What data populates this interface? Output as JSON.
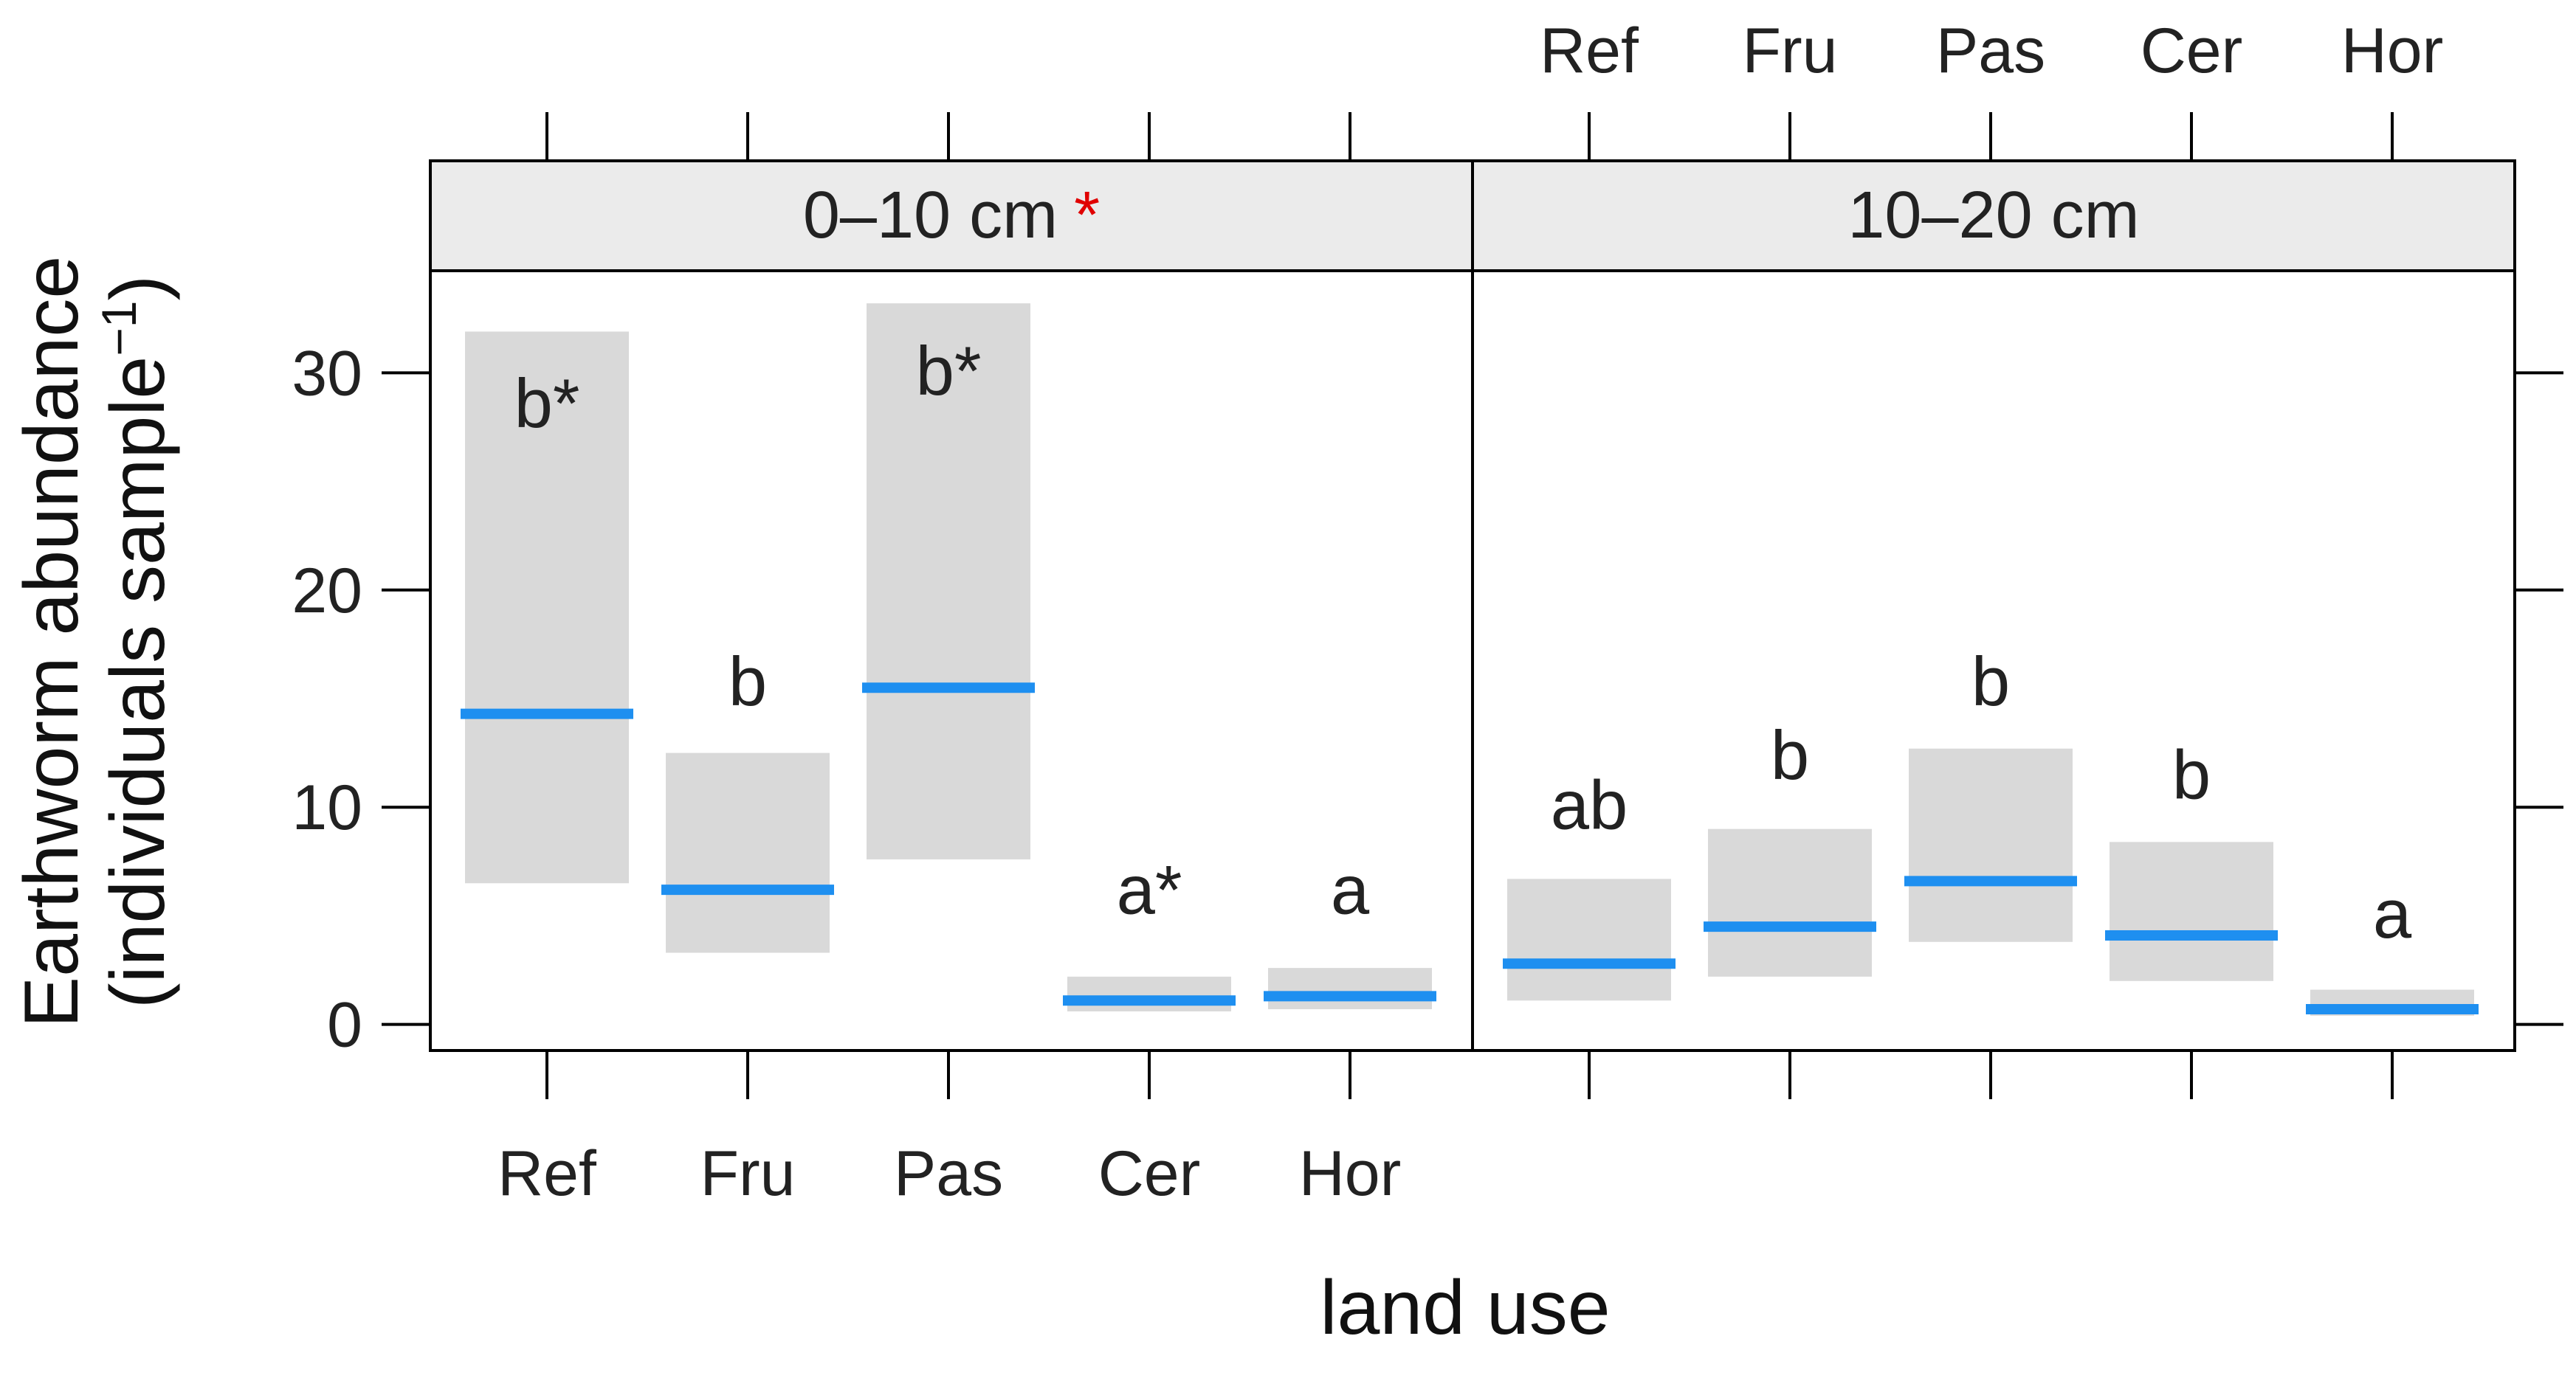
{
  "chart_data": {
    "type": "bar",
    "categories": [
      "Ref",
      "Fru",
      "Pas",
      "Cer",
      "Hor"
    ],
    "xlabel": "land use",
    "ylabel": "Earthworm abundance",
    "ylabel2": "(individuals sample",
    "ylabel_sup": "−1",
    "ylabel_close": ")",
    "yticks": [
      0,
      10,
      20,
      30
    ],
    "ylim": [
      -1.2,
      34.7
    ],
    "panels": [
      {
        "label": "0–10 cm",
        "marker": "*",
        "means": [
          14.3,
          6.2,
          15.5,
          1.1,
          1.3
        ],
        "lower": [
          6.5,
          3.3,
          7.6,
          0.6,
          0.7
        ],
        "upper": [
          31.9,
          12.5,
          33.2,
          2.2,
          2.6
        ],
        "letters": [
          "b*",
          "b",
          "b*",
          "a*",
          "a"
        ],
        "letter_y": [
          27.5,
          14.7,
          29.0,
          5.1,
          5.1
        ]
      },
      {
        "label": "10–20 cm",
        "marker": "",
        "means": [
          2.8,
          4.5,
          6.6,
          4.1,
          0.7
        ],
        "lower": [
          1.1,
          2.2,
          3.8,
          2.0,
          0.4
        ],
        "upper": [
          6.7,
          9.0,
          12.7,
          8.4,
          1.6
        ],
        "letters": [
          "ab",
          "b",
          "b",
          "b",
          "a"
        ],
        "letter_y": [
          9.0,
          11.3,
          14.7,
          10.4,
          4.0
        ]
      }
    ],
    "grid": false,
    "colors": {
      "mean_line": "#1e8ff0",
      "interval": "#d9d9d9",
      "strip": "#ebebeb",
      "marker": "#e00000"
    }
  }
}
